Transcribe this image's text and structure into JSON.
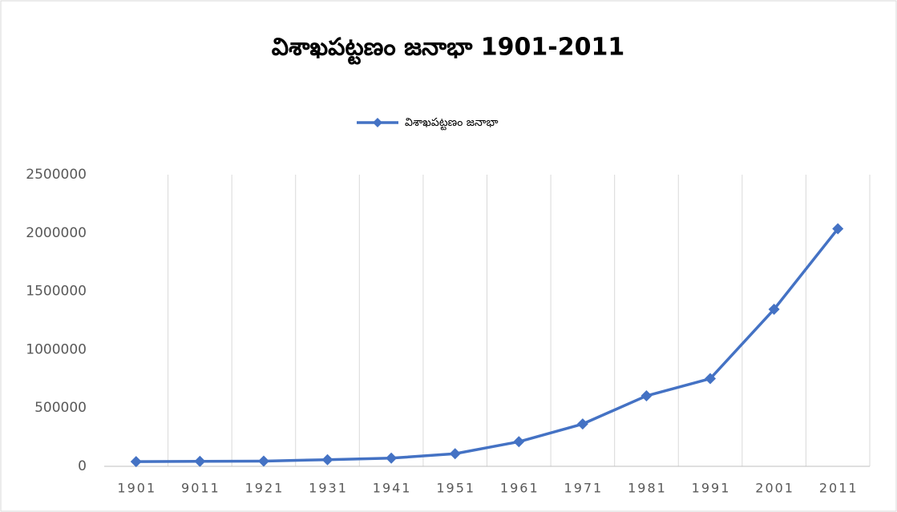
{
  "chart_data": {
    "type": "line",
    "title": "విశాఖపట్టణం జనాభా 1901-2011",
    "categories": [
      "1901",
      "9011",
      "1921",
      "1931",
      "1941",
      "1951",
      "1961",
      "1971",
      "1981",
      "1991",
      "2001",
      "2011"
    ],
    "series": [
      {
        "name": "విశాఖపట్టణం జనాభా",
        "color": "#4472c4",
        "values": [
          40000,
          43000,
          45000,
          57000,
          70000,
          108000,
          211000,
          363000,
          604000,
          752000,
          1346000,
          2036000
        ]
      }
    ],
    "ylim": [
      0,
      2500000
    ],
    "yticks": [
      0,
      500000,
      1000000,
      1500000,
      2000000,
      2500000
    ],
    "grid": "vertical",
    "legend": "top"
  }
}
